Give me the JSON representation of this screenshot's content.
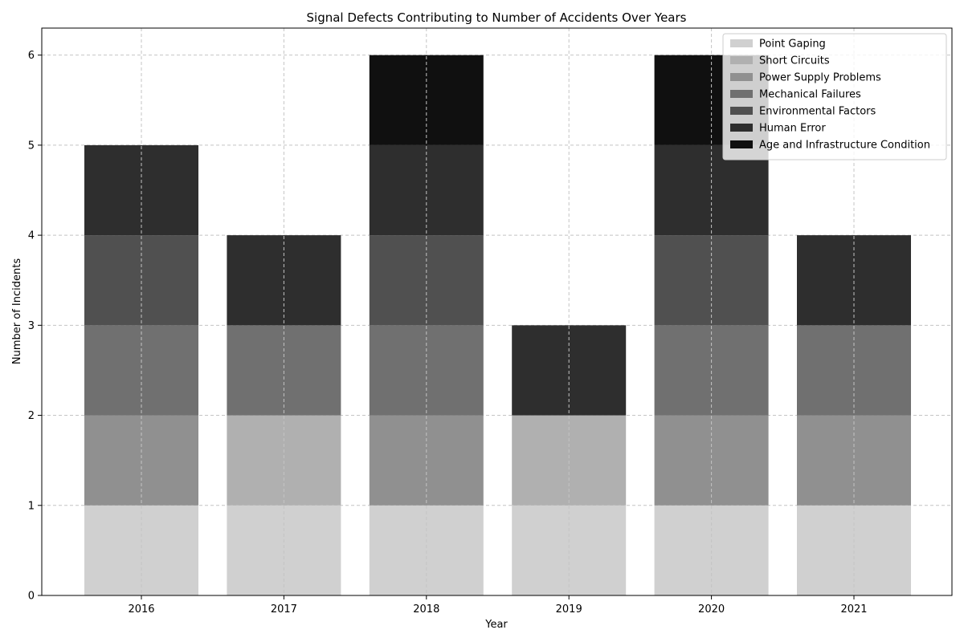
{
  "chart_data": {
    "type": "bar",
    "stacked": true,
    "title": "Signal Defects Contributing to Number of Accidents Over Years",
    "xlabel": "Year",
    "ylabel": "Number of Incidents",
    "categories": [
      "2016",
      "2017",
      "2018",
      "2019",
      "2020",
      "2021"
    ],
    "ylim": [
      0,
      6.3
    ],
    "yticks": [
      0,
      1,
      2,
      3,
      4,
      5,
      6
    ],
    "grid": true,
    "legend_position": "top-right",
    "series": [
      {
        "name": "Point Gaping",
        "color": "#d0d0d0",
        "values": [
          1,
          1,
          1,
          1,
          1,
          1
        ]
      },
      {
        "name": "Short Circuits",
        "color": "#b0b0b0",
        "values": [
          0,
          1,
          0,
          1,
          0,
          0
        ]
      },
      {
        "name": "Power Supply Problems",
        "color": "#909090",
        "values": [
          1,
          0,
          1,
          0,
          1,
          1
        ]
      },
      {
        "name": "Mechanical Failures",
        "color": "#707070",
        "values": [
          1,
          1,
          1,
          0,
          1,
          1
        ]
      },
      {
        "name": "Environmental Factors",
        "color": "#505050",
        "values": [
          1,
          0,
          1,
          0,
          1,
          0
        ]
      },
      {
        "name": "Human Error",
        "color": "#2e2e2e",
        "values": [
          1,
          1,
          1,
          1,
          1,
          1
        ]
      },
      {
        "name": "Age and Infrastructure Condition",
        "color": "#101010",
        "values": [
          0,
          0,
          1,
          0,
          1,
          0
        ]
      }
    ]
  }
}
